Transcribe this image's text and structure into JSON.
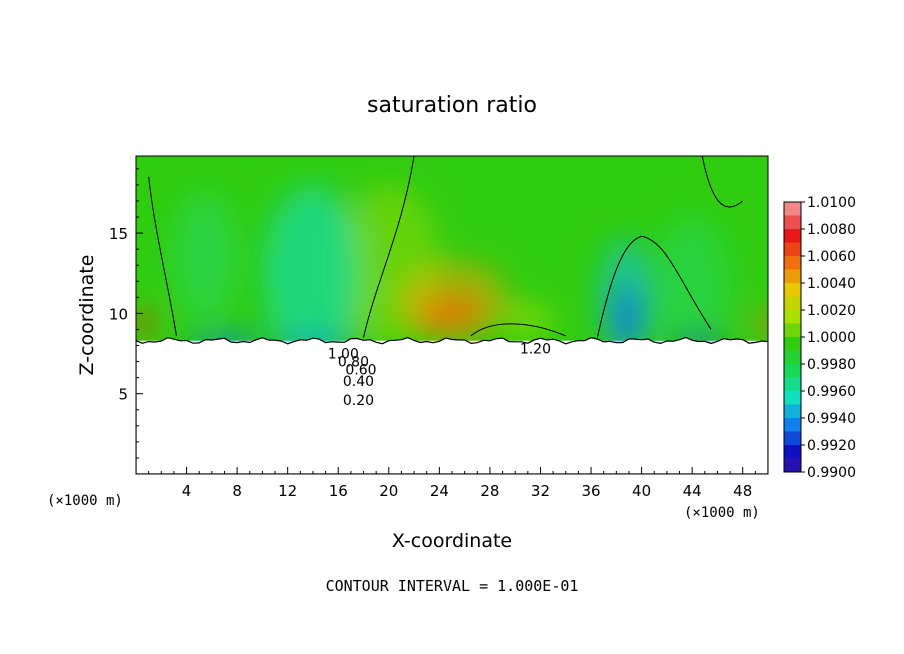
{
  "chart_data": {
    "type": "heatmap",
    "title": "saturation ratio",
    "xlabel": "X-coordinate",
    "ylabel": "Z-coordinate",
    "x_unit_left": "(×1000 m)",
    "x_unit_right": "(×1000 m)",
    "xlim": [
      0,
      50
    ],
    "ylim": [
      0,
      19.8
    ],
    "x_ticks": [
      4,
      8,
      12,
      16,
      20,
      24,
      28,
      32,
      36,
      40,
      44,
      48
    ],
    "y_ticks": [
      5,
      10,
      15
    ],
    "footer": "CONTOUR INTERVAL = 1.000E-01",
    "colorbar": {
      "labels": [
        "1.0100",
        "1.0080",
        "1.0060",
        "1.0040",
        "1.0020",
        "1.0000",
        "0.9980",
        "0.9960",
        "0.9940",
        "0.9920",
        "0.9900"
      ],
      "colors": [
        "#f08888",
        "#e81818",
        "#f07010",
        "#e8c800",
        "#a8e000",
        "#30cc10",
        "#18d858",
        "#10e0c0",
        "#1080f0",
        "#1010c0",
        "#4010a0"
      ]
    },
    "contour_labels": [
      {
        "text": "1.20",
        "x": 31.6,
        "z": 7.8
      },
      {
        "text": "1.00",
        "x": 16.4,
        "z": 7.5
      },
      {
        "text": "0.80",
        "x": 17.2,
        "z": 7.0
      },
      {
        "text": "0.60",
        "x": 17.8,
        "z": 6.5
      },
      {
        "text": "0.40",
        "x": 17.6,
        "z": 5.8
      },
      {
        "text": "0.20",
        "x": 17.6,
        "z": 4.6
      }
    ],
    "contour_levels": [
      {
        "value": 0.2,
        "z": 4.7
      },
      {
        "value": 0.4,
        "z": 5.9
      },
      {
        "value": 0.6,
        "z": 6.6
      },
      {
        "value": 0.8,
        "z": 7.1
      },
      {
        "value": 1.0,
        "z": 7.6
      }
    ],
    "cloud_base_z": 8.3,
    "blobs": [
      {
        "x": 24.5,
        "z": 10.0,
        "rx": 3.0,
        "rz": 1.2,
        "color": "#f03010",
        "opacity": 0.75
      },
      {
        "x": 25.0,
        "z": 10.8,
        "rx": 4.5,
        "rz": 2.5,
        "color": "#f0a000",
        "opacity": 0.55
      },
      {
        "x": 20.0,
        "z": 13.0,
        "rx": 4.0,
        "rz": 5.0,
        "color": "#c8e000",
        "opacity": 0.35
      },
      {
        "x": 14.0,
        "z": 12.5,
        "rx": 4.0,
        "rz": 5.5,
        "color": "#10e0c0",
        "opacity": 0.6
      },
      {
        "x": 5.5,
        "z": 13.5,
        "rx": 2.5,
        "rz": 4.0,
        "color": "#20e090",
        "opacity": 0.4
      },
      {
        "x": 38.8,
        "z": 9.7,
        "rx": 1.2,
        "rz": 2.0,
        "color": "#1010c0",
        "opacity": 0.85
      },
      {
        "x": 38.8,
        "z": 11.0,
        "rx": 2.2,
        "rz": 3.6,
        "color": "#10c0e0",
        "opacity": 0.6
      },
      {
        "x": 44.0,
        "z": 11.5,
        "rx": 3.0,
        "rz": 4.5,
        "color": "#20e090",
        "opacity": 0.35
      },
      {
        "x": 0.5,
        "z": 9.4,
        "rx": 0.8,
        "rz": 0.7,
        "color": "#f03010",
        "opacity": 0.8
      },
      {
        "x": 49.8,
        "z": 9.4,
        "rx": 0.8,
        "rz": 0.7,
        "color": "#f07010",
        "opacity": 0.8
      },
      {
        "x": 31.0,
        "z": 9.6,
        "rx": 2.0,
        "rz": 1.0,
        "color": "#a8e000",
        "opacity": 0.6
      },
      {
        "x": 7.0,
        "z": 8.2,
        "rx": 3.0,
        "rz": 0.5,
        "color": "#1080f0",
        "opacity": 0.8
      },
      {
        "x": 14.0,
        "z": 8.2,
        "rx": 3.5,
        "rz": 0.5,
        "color": "#1080f0",
        "opacity": 0.6
      },
      {
        "x": 44.5,
        "z": 8.2,
        "rx": 2.5,
        "rz": 0.5,
        "color": "#1010c0",
        "opacity": 0.6
      }
    ]
  }
}
